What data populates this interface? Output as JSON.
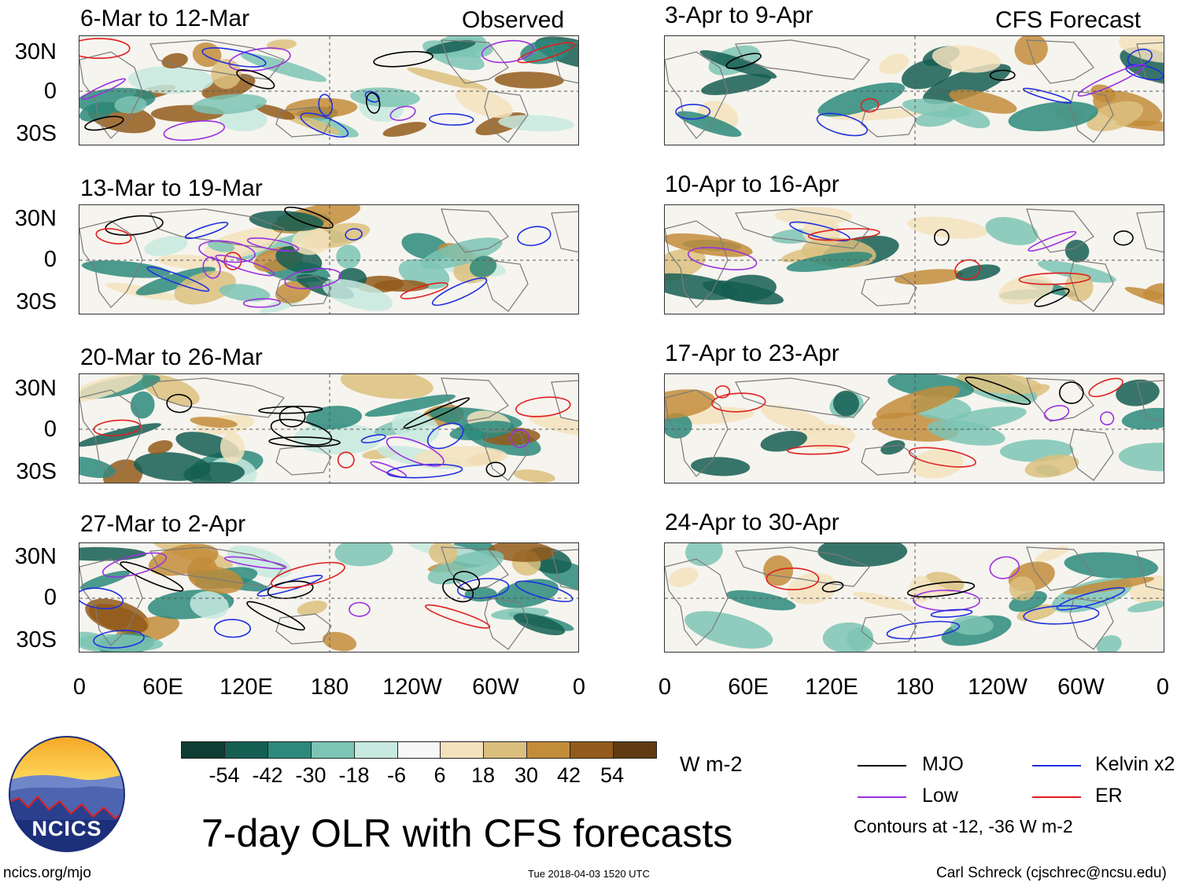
{
  "panels": {
    "p1": {
      "title": "6-Mar to 12-Mar",
      "tag": "Observed"
    },
    "p2": {
      "title": "13-Mar to 19-Mar"
    },
    "p3": {
      "title": "20-Mar to 26-Mar"
    },
    "p4": {
      "title": "27-Mar to 2-Apr"
    },
    "p5": {
      "title": "3-Apr to 9-Apr",
      "tag": "CFS Forecast"
    },
    "p6": {
      "title": "10-Apr to 16-Apr"
    },
    "p7": {
      "title": "17-Apr to 23-Apr"
    },
    "p8": {
      "title": "24-Apr to 30-Apr"
    }
  },
  "lat_labels": [
    "30N",
    "0",
    "30S"
  ],
  "lon_labels": [
    "0",
    "60E",
    "120E",
    "180",
    "120W",
    "60W",
    "0"
  ],
  "colorbar": {
    "unit": "W m-2",
    "ticks": [
      "-54",
      "-42",
      "-30",
      "-18",
      "-6",
      "6",
      "18",
      "30",
      "42",
      "54"
    ],
    "colors": [
      "#0f3d33",
      "#155e52",
      "#2b8a7b",
      "#7cc4b4",
      "#c7e9df",
      "#f7f7f7",
      "#f3e2bd",
      "#dcbf7e",
      "#c38c3b",
      "#935b1b",
      "#5f3a12"
    ]
  },
  "legend": {
    "mjo": "MJO",
    "kelvin": "Kelvin x2",
    "low": "Low",
    "er": "ER",
    "note": "Contours at -12, -36 W m-2",
    "colors": {
      "mjo": "#000000",
      "kelvin": "#1f2fe0",
      "low": "#9b30e0",
      "er": "#e01f1f"
    }
  },
  "logo": {
    "text": "NCICS"
  },
  "main_title": "7-day OLR with CFS forecasts",
  "footer": {
    "url": "ncics.org/mjo",
    "timestamp": "Tue 2018-04-03 1520 UTC",
    "credit": "Carl Schreck (cjschrec@ncsu.edu)"
  }
}
